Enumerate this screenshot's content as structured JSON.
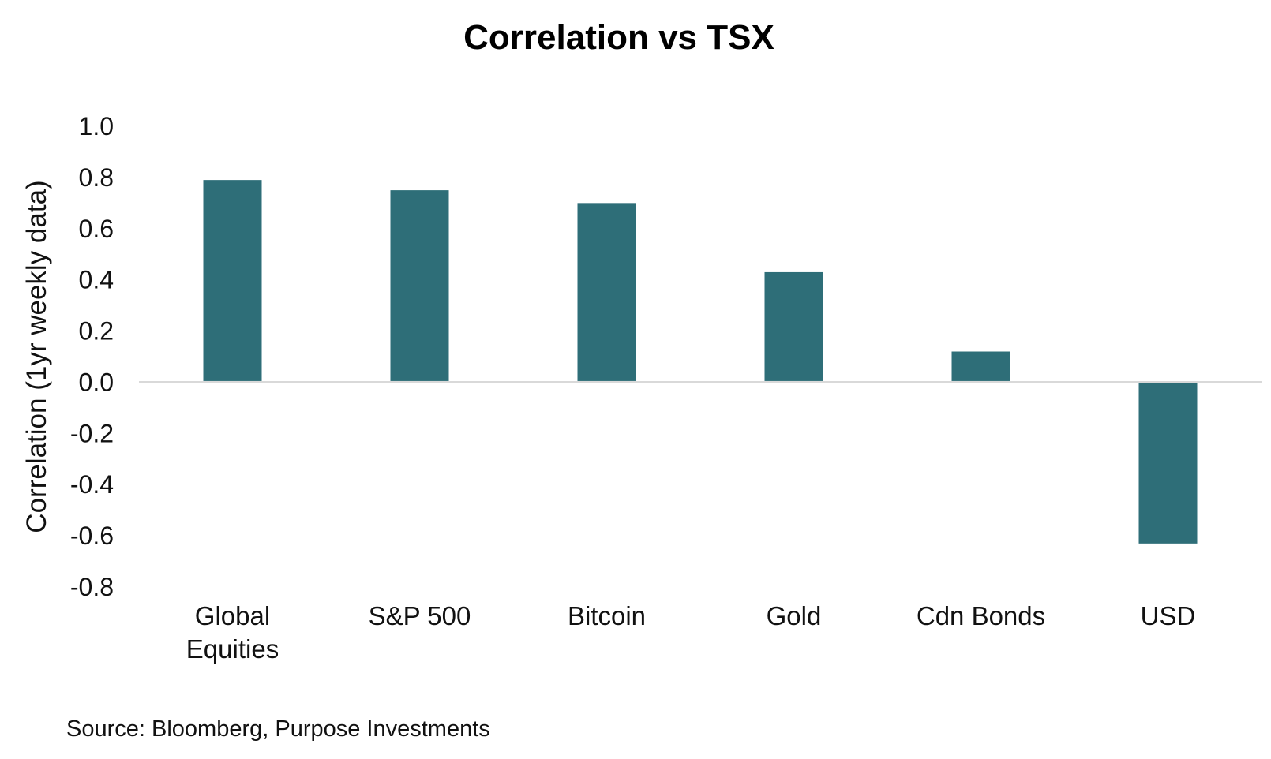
{
  "colors": {
    "bar": "#2E6E78",
    "zero_line": "#D9D9D9",
    "text": "#111111"
  },
  "source": "Source: Bloomberg, Purpose Investments",
  "chart_data": {
    "type": "bar",
    "title": "Correlation vs TSX",
    "xlabel": "",
    "ylabel": "Correlation (1yr weekly data)",
    "categories": [
      [
        "Global",
        "Equities"
      ],
      [
        "S&P 500"
      ],
      [
        "Bitcoin"
      ],
      [
        "Gold"
      ],
      [
        "Cdn Bonds"
      ],
      [
        "USD"
      ]
    ],
    "values": [
      0.79,
      0.75,
      0.7,
      0.43,
      0.12,
      -0.63
    ],
    "ylim": [
      -0.8,
      1.0
    ],
    "yticks": [
      "1.0",
      "0.8",
      "0.6",
      "0.4",
      "0.2",
      "0.0",
      "-0.2",
      "-0.4",
      "-0.6",
      "-0.8"
    ],
    "ytick_values": [
      1.0,
      0.8,
      0.6,
      0.4,
      0.2,
      0.0,
      -0.2,
      -0.4,
      -0.6,
      -0.8
    ],
    "grid": false,
    "legend": "none"
  }
}
